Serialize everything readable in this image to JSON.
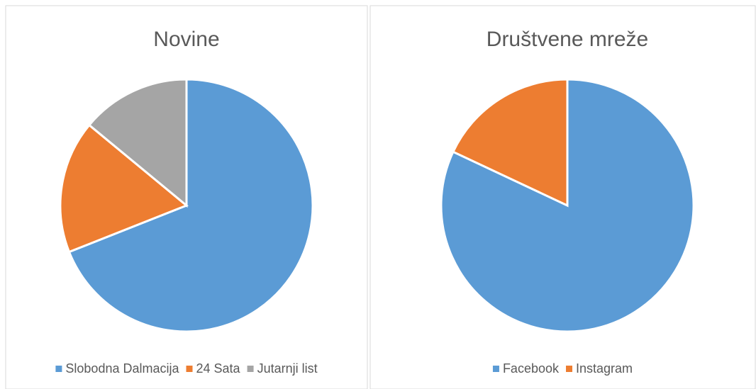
{
  "chart_data": [
    {
      "type": "pie",
      "title": "Novine",
      "categories": [
        "Slobodna Dalmacija",
        "24 Sata",
        "Jutarnji list"
      ],
      "values": [
        69,
        17,
        14
      ],
      "colors": [
        "#5b9bd5",
        "#ed7d31",
        "#a5a5a5"
      ],
      "legend": "bottom"
    },
    {
      "type": "pie",
      "title": "Društvene mreže",
      "categories": [
        "Facebook",
        "Instagram"
      ],
      "values": [
        82,
        18
      ],
      "colors": [
        "#5b9bd5",
        "#ed7d31"
      ],
      "legend": "bottom"
    }
  ]
}
